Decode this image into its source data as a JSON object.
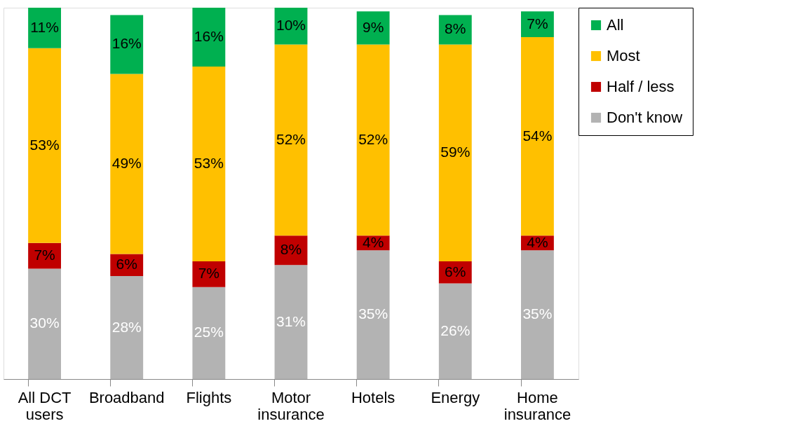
{
  "chart_data": {
    "type": "bar",
    "stacked": true,
    "legend": "right",
    "grid": false,
    "categories": [
      "All DCT users",
      "Broadband",
      "Flights",
      "Motor insurance",
      "Hotels",
      "Energy",
      "Home insurance"
    ],
    "series": [
      {
        "name": "Don't know",
        "color": "#b3b3b3",
        "values": [
          30,
          28,
          25,
          31,
          35,
          26,
          35
        ],
        "value_labels": [
          "30%",
          "28%",
          "25%",
          "31%",
          "35%",
          "26%",
          "35%"
        ]
      },
      {
        "name": "Half / less",
        "color": "#c00000",
        "values": [
          7,
          6,
          7,
          8,
          4,
          6,
          4
        ],
        "value_labels": [
          "7%",
          "6%",
          "7%",
          "8%",
          "4%",
          "6%",
          "4%"
        ]
      },
      {
        "name": "Most",
        "color": "#ffc000",
        "values": [
          53,
          49,
          53,
          52,
          52,
          59,
          54
        ],
        "value_labels": [
          "53%",
          "49%",
          "53%",
          "52%",
          "52%",
          "59%",
          "54%"
        ]
      },
      {
        "name": "All",
        "color": "#00b050",
        "values": [
          11,
          16,
          16,
          10,
          9,
          8,
          7
        ],
        "value_labels": [
          "11%",
          "16%",
          "16%",
          "10%",
          "9%",
          "8%",
          "7%"
        ]
      }
    ]
  }
}
